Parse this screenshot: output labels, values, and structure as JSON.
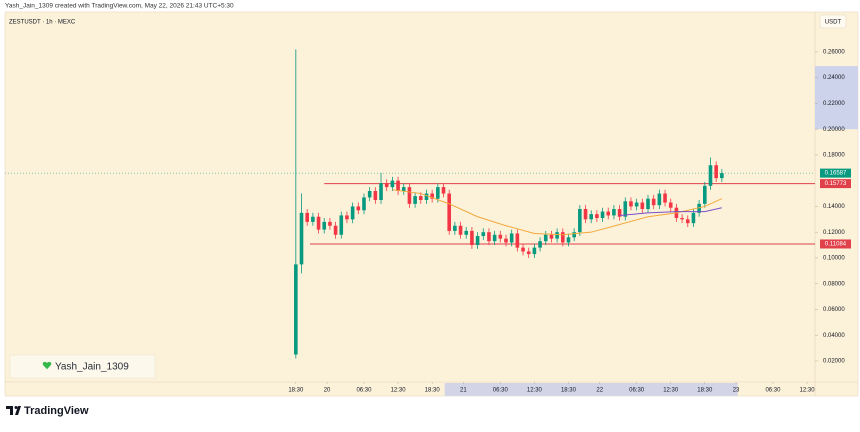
{
  "chart_data": {
    "type": "candlestick",
    "header": "Yash_Jain_1309 created with TradingView.com, May 22, 2026 21:43 UTC+5:30",
    "title": "ZESTUSDT · 1h · MEXC",
    "currency": "USDT",
    "watermark": "Yash_Jain_1309",
    "brand": "TradingView",
    "up_color": "#089981",
    "down_color": "#f23645",
    "open": [
      0.025,
      0.095,
      0.135,
      0.128,
      0.132,
      0.122,
      0.128,
      0.125,
      0.118,
      0.133,
      0.13,
      0.14,
      0.137,
      0.147,
      0.152,
      0.145,
      0.158,
      0.155,
      0.16,
      0.152,
      0.155,
      0.142,
      0.148,
      0.145,
      0.15,
      0.146,
      0.155,
      0.15,
      0.121,
      0.125,
      0.118,
      0.121,
      0.11,
      0.117,
      0.12,
      0.113,
      0.118,
      0.115,
      0.112,
      0.119,
      0.108,
      0.105,
      0.103,
      0.108,
      0.113,
      0.118,
      0.115,
      0.12,
      0.112,
      0.116,
      0.12,
      0.138,
      0.13,
      0.134,
      0.131,
      0.136,
      0.133,
      0.138,
      0.132,
      0.144,
      0.14,
      0.143,
      0.138,
      0.146,
      0.141,
      0.15,
      0.143,
      0.139,
      0.131,
      0.13,
      0.127,
      0.135,
      0.142,
      0.156,
      0.172,
      0.162
    ],
    "high": [
      0.262,
      0.15,
      0.138,
      0.135,
      0.135,
      0.131,
      0.131,
      0.128,
      0.136,
      0.136,
      0.143,
      0.143,
      0.15,
      0.155,
      0.155,
      0.166,
      0.161,
      0.163,
      0.163,
      0.158,
      0.158,
      0.151,
      0.151,
      0.153,
      0.153,
      0.158,
      0.158,
      0.153,
      0.128,
      0.128,
      0.124,
      0.124,
      0.12,
      0.123,
      0.123,
      0.121,
      0.121,
      0.118,
      0.122,
      0.122,
      0.111,
      0.108,
      0.111,
      0.116,
      0.121,
      0.121,
      0.123,
      0.123,
      0.119,
      0.123,
      0.141,
      0.141,
      0.137,
      0.137,
      0.139,
      0.139,
      0.141,
      0.141,
      0.147,
      0.147,
      0.146,
      0.146,
      0.149,
      0.149,
      0.153,
      0.153,
      0.146,
      0.142,
      0.134,
      0.133,
      0.138,
      0.145,
      0.159,
      0.178,
      0.175,
      0.169
    ],
    "low": [
      0.022,
      0.088,
      0.125,
      0.125,
      0.119,
      0.119,
      0.122,
      0.115,
      0.115,
      0.127,
      0.127,
      0.134,
      0.134,
      0.144,
      0.142,
      0.142,
      0.152,
      0.152,
      0.149,
      0.149,
      0.139,
      0.139,
      0.142,
      0.142,
      0.143,
      0.143,
      0.147,
      0.118,
      0.118,
      0.115,
      0.115,
      0.107,
      0.107,
      0.114,
      0.11,
      0.11,
      0.112,
      0.109,
      0.109,
      0.105,
      0.102,
      0.1,
      0.1,
      0.105,
      0.11,
      0.112,
      0.112,
      0.109,
      0.109,
      0.113,
      0.117,
      0.127,
      0.127,
      0.128,
      0.128,
      0.13,
      0.13,
      0.129,
      0.129,
      0.137,
      0.137,
      0.135,
      0.135,
      0.138,
      0.138,
      0.14,
      0.136,
      0.128,
      0.127,
      0.124,
      0.124,
      0.132,
      0.139,
      0.153,
      0.159,
      0.159
    ],
    "close": [
      0.095,
      0.135,
      0.128,
      0.132,
      0.122,
      0.128,
      0.125,
      0.118,
      0.133,
      0.13,
      0.14,
      0.137,
      0.147,
      0.152,
      0.145,
      0.158,
      0.155,
      0.16,
      0.152,
      0.155,
      0.142,
      0.148,
      0.145,
      0.15,
      0.146,
      0.155,
      0.15,
      0.121,
      0.125,
      0.118,
      0.121,
      0.11,
      0.117,
      0.12,
      0.113,
      0.118,
      0.115,
      0.112,
      0.119,
      0.108,
      0.105,
      0.103,
      0.108,
      0.113,
      0.118,
      0.115,
      0.12,
      0.112,
      0.116,
      0.12,
      0.138,
      0.13,
      0.134,
      0.131,
      0.136,
      0.133,
      0.138,
      0.132,
      0.144,
      0.14,
      0.143,
      0.138,
      0.146,
      0.141,
      0.15,
      0.143,
      0.139,
      0.131,
      0.13,
      0.127,
      0.135,
      0.142,
      0.156,
      0.172,
      0.162,
      0.16587
    ],
    "lines": [
      {
        "color": "#f2a93b",
        "x": [
          17,
          22,
          27,
          32,
          37,
          42,
          47,
          52,
          57,
          62,
          67,
          72,
          75
        ],
        "values": [
          0.153,
          0.15,
          0.142,
          0.132,
          0.125,
          0.119,
          0.118,
          0.12,
          0.126,
          0.132,
          0.135,
          0.14,
          0.146
        ]
      },
      {
        "color": "#7b4fc9",
        "x": [
          57,
          62,
          67,
          72,
          75
        ],
        "values": [
          0.133,
          0.135,
          0.136,
          0.136,
          0.139
        ]
      }
    ],
    "levels": [
      {
        "value": 0.15773,
        "label": "0.15773",
        "color": "#e0404a",
        "start": 5
      },
      {
        "value": 0.11084,
        "label": "0.11084",
        "color": "#e0404a",
        "start": 2.5
      }
    ],
    "last_price": {
      "value": 0.16587,
      "label": "0.16587",
      "color": "#089981"
    },
    "price_highlight": [
      0.2,
      0.249
    ],
    "time_highlight": [
      26.2,
      77.8
    ],
    "xlim": [
      -51.2,
      91.4
    ],
    "ylim": [
      0.0052,
      0.291
    ],
    "yticks": [
      {
        "value": 0.02,
        "label": "0.02000"
      },
      {
        "value": 0.04,
        "label": "0.04000"
      },
      {
        "value": 0.06,
        "label": "0.06000"
      },
      {
        "value": 0.08,
        "label": "0.08000"
      },
      {
        "value": 0.1,
        "label": "0.10000"
      },
      {
        "value": 0.12,
        "label": "0.12000"
      },
      {
        "value": 0.14,
        "label": "0.14000"
      },
      {
        "value": 0.18,
        "label": "0.18000"
      },
      {
        "value": 0.2,
        "label": "0.20000"
      },
      {
        "value": 0.22,
        "label": "0.22000"
      },
      {
        "value": 0.24,
        "label": "0.24000"
      },
      {
        "value": 0.26,
        "label": "0.26000"
      }
    ],
    "xticks": [
      {
        "value": 0,
        "label": "18:30"
      },
      {
        "value": 5.5,
        "label": "20"
      },
      {
        "value": 12,
        "label": "06:30"
      },
      {
        "value": 18,
        "label": "12:30"
      },
      {
        "value": 24,
        "label": "18:30"
      },
      {
        "value": 29.5,
        "label": "21"
      },
      {
        "value": 36,
        "label": "06:30"
      },
      {
        "value": 42,
        "label": "12:30"
      },
      {
        "value": 48,
        "label": "18:30"
      },
      {
        "value": 53.5,
        "label": "22"
      },
      {
        "value": 60,
        "label": "06:30"
      },
      {
        "value": 66,
        "label": "12:30"
      },
      {
        "value": 72,
        "label": "18:30"
      },
      {
        "value": 77.5,
        "label": "23"
      },
      {
        "value": 84,
        "label": "06:30"
      },
      {
        "value": 90,
        "label": "12:30"
      }
    ]
  }
}
